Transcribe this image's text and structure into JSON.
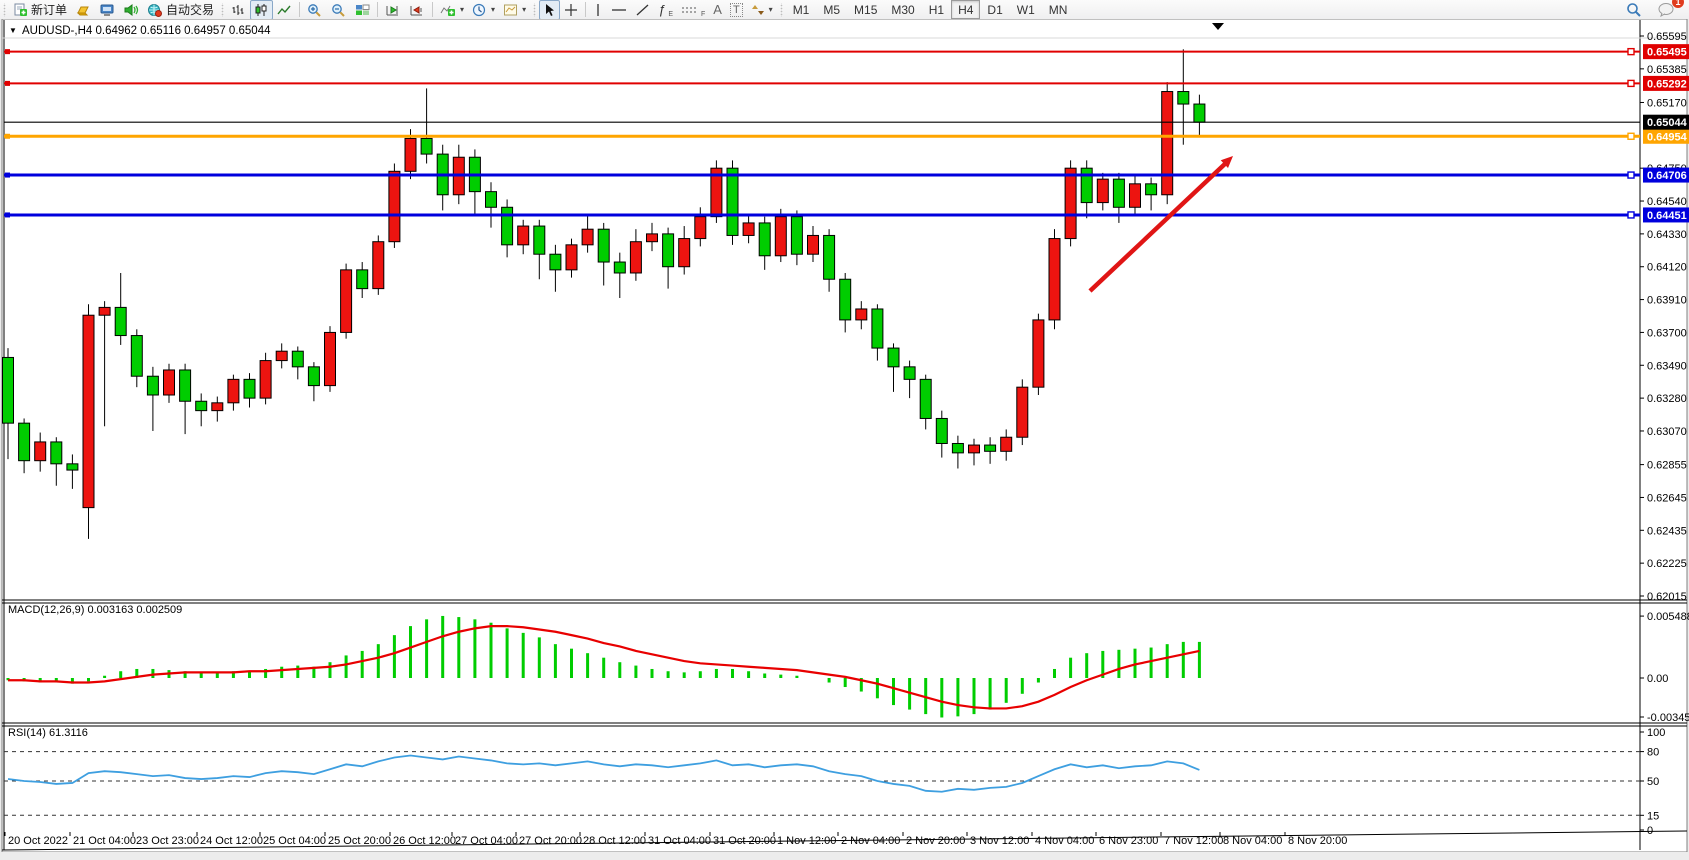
{
  "toolbar": {
    "new_order_label": "新订单",
    "auto_trading_label": "自动交易",
    "icons": [
      "new-order-icon",
      "gold-icon",
      "terminal-icon",
      "sound-icon",
      "auto-trading-icon",
      "bar-chart-icon",
      "candlestick-icon",
      "line-chart-icon",
      "zoom-in-icon",
      "zoom-out-icon",
      "tile-windows-icon",
      "auto-scroll-icon",
      "chart-shift-icon",
      "indicators-icon",
      "periods-icon",
      "templates-icon",
      "cursor-icon",
      "crosshair-icon",
      "vline-icon",
      "hline-icon",
      "trendline-icon",
      "fibonacci-icon",
      "channel-icon",
      "text-icon",
      "text-label-icon",
      "arrows-icon",
      "search-icon",
      "chat-icon"
    ],
    "glyphs": {
      "fibonacci": "ƒ",
      "text": "A",
      "text_label": "T",
      "caret": "▾",
      "shift_marker": "▼"
    },
    "timeframes": [
      "M1",
      "M5",
      "M15",
      "M30",
      "H1",
      "H4",
      "D1",
      "W1",
      "MN"
    ],
    "active_timeframe": "H4",
    "chat_badge": "1"
  },
  "window": {
    "title_symbol": "AUDUSD-,H4",
    "quote_open": "0.64962",
    "quote_high": "0.65116",
    "quote_low": "0.64957",
    "quote_close": "0.65044"
  },
  "price_axis": {
    "ticks": [
      "0.65595",
      "0.65385",
      "0.65170",
      "0.64750",
      "0.64540",
      "0.64330",
      "0.64120",
      "0.63910",
      "0.63700",
      "0.63490",
      "0.63280",
      "0.63070",
      "0.62855",
      "0.62645",
      "0.62435",
      "0.62225",
      "0.62015"
    ],
    "current_price": "0.65044",
    "current_price_value": 0.65044
  },
  "hlines": [
    {
      "name": "resistance-1",
      "price": 0.65495,
      "label": "0.65495",
      "color": "#e00000",
      "width": 2
    },
    {
      "name": "resistance-2",
      "price": 0.65292,
      "label": "0.65292",
      "color": "#e00000",
      "width": 2
    },
    {
      "name": "pivot-orange",
      "price": 0.64954,
      "label": "0.64954",
      "color": "#ffa500",
      "width": 3
    },
    {
      "name": "support-1",
      "price": 0.64706,
      "label": "0.64706",
      "color": "#0000dd",
      "width": 3
    },
    {
      "name": "support-2",
      "price": 0.64451,
      "label": "0.64451",
      "color": "#0000dd",
      "width": 3
    }
  ],
  "time_axis": {
    "labels": [
      "20 Oct 2022",
      "21 Oct 04:00",
      "23 Oct 23:00",
      "24 Oct 12:00",
      "25 Oct 04:00",
      "25 Oct 20:00",
      "26 Oct 12:00",
      "27 Oct 04:00",
      "27 Oct 20:00",
      "28 Oct 12:00",
      "31 Oct 04:00",
      "31 Oct 20:00",
      "1 Nov 12:00",
      "2 Nov 04:00",
      "2 Nov 20:00",
      "3 Nov 12:00",
      "4 Nov 04:00",
      "6 Nov 23:00",
      "7 Nov 12:00",
      "8 Nov 04:00",
      "8 Nov 20:00"
    ],
    "positions": [
      5,
      70,
      133,
      197,
      260,
      325,
      390,
      452,
      516,
      580,
      645,
      710,
      774,
      838,
      903,
      967,
      1032,
      1096,
      1161,
      1220,
      1285
    ]
  },
  "chart_data": {
    "type": "candlestick",
    "symbol": "AUDUSD",
    "timeframe": "H4",
    "up_color": "#ed1410",
    "down_color": "#00cd00",
    "price_top": 0.65595,
    "price_bottom": 0.62015,
    "candles": [
      [
        0.6354,
        0.636,
        0.6289,
        0.6312
      ],
      [
        0.6312,
        0.6315,
        0.628,
        0.6288
      ],
      [
        0.6288,
        0.6306,
        0.6281,
        0.63
      ],
      [
        0.63,
        0.6303,
        0.6272,
        0.6286
      ],
      [
        0.6286,
        0.6292,
        0.627,
        0.6282
      ],
      [
        0.6258,
        0.6388,
        0.6238,
        0.6381
      ],
      [
        0.6381,
        0.639,
        0.631,
        0.6386
      ],
      [
        0.6386,
        0.6408,
        0.6362,
        0.6368
      ],
      [
        0.6368,
        0.6372,
        0.6335,
        0.6342
      ],
      [
        0.6342,
        0.6348,
        0.6307,
        0.633
      ],
      [
        0.633,
        0.635,
        0.6325,
        0.6346
      ],
      [
        0.6346,
        0.635,
        0.6305,
        0.6326
      ],
      [
        0.6326,
        0.6331,
        0.631,
        0.632
      ],
      [
        0.632,
        0.6329,
        0.6313,
        0.6325
      ],
      [
        0.6325,
        0.6343,
        0.632,
        0.634
      ],
      [
        0.634,
        0.6344,
        0.6322,
        0.6328
      ],
      [
        0.6328,
        0.6357,
        0.6324,
        0.6352
      ],
      [
        0.6352,
        0.6363,
        0.6347,
        0.6358
      ],
      [
        0.6358,
        0.6361,
        0.634,
        0.6348
      ],
      [
        0.6348,
        0.6351,
        0.6326,
        0.6336
      ],
      [
        0.6336,
        0.6374,
        0.6332,
        0.637
      ],
      [
        0.637,
        0.6414,
        0.6366,
        0.641
      ],
      [
        0.641,
        0.6415,
        0.6392,
        0.6398
      ],
      [
        0.6398,
        0.6432,
        0.6394,
        0.6428
      ],
      [
        0.6428,
        0.6478,
        0.6424,
        0.6473
      ],
      [
        0.6473,
        0.65,
        0.6468,
        0.6494
      ],
      [
        0.6494,
        0.6526,
        0.6478,
        0.6484
      ],
      [
        0.6484,
        0.649,
        0.6448,
        0.6458
      ],
      [
        0.6458,
        0.649,
        0.6452,
        0.6482
      ],
      [
        0.6482,
        0.6487,
        0.6445,
        0.646
      ],
      [
        0.646,
        0.6466,
        0.6437,
        0.645
      ],
      [
        0.645,
        0.6455,
        0.6418,
        0.6426
      ],
      [
        0.6426,
        0.6442,
        0.642,
        0.6438
      ],
      [
        0.6438,
        0.6442,
        0.6404,
        0.642
      ],
      [
        0.642,
        0.6426,
        0.6396,
        0.641
      ],
      [
        0.641,
        0.643,
        0.6405,
        0.6426
      ],
      [
        0.6426,
        0.6445,
        0.6421,
        0.6436
      ],
      [
        0.6436,
        0.644,
        0.64,
        0.6415
      ],
      [
        0.6415,
        0.6421,
        0.6392,
        0.6408
      ],
      [
        0.6408,
        0.6436,
        0.6403,
        0.6428
      ],
      [
        0.6428,
        0.644,
        0.6422,
        0.6433
      ],
      [
        0.6433,
        0.6437,
        0.6398,
        0.6412
      ],
      [
        0.6412,
        0.6438,
        0.6407,
        0.643
      ],
      [
        0.643,
        0.645,
        0.6425,
        0.6444
      ],
      [
        0.6444,
        0.648,
        0.644,
        0.6475
      ],
      [
        0.6475,
        0.648,
        0.6426,
        0.6432
      ],
      [
        0.6432,
        0.6446,
        0.6427,
        0.644
      ],
      [
        0.644,
        0.6444,
        0.641,
        0.6419
      ],
      [
        0.6419,
        0.6449,
        0.6415,
        0.6444
      ],
      [
        0.6444,
        0.6448,
        0.6413,
        0.642
      ],
      [
        0.642,
        0.6438,
        0.6415,
        0.6432
      ],
      [
        0.6432,
        0.6436,
        0.6396,
        0.6404
      ],
      [
        0.6404,
        0.6408,
        0.637,
        0.6378
      ],
      [
        0.6378,
        0.639,
        0.6372,
        0.6385
      ],
      [
        0.6385,
        0.6388,
        0.6352,
        0.636
      ],
      [
        0.636,
        0.6363,
        0.6332,
        0.6348
      ],
      [
        0.6348,
        0.6352,
        0.6328,
        0.634
      ],
      [
        0.634,
        0.6343,
        0.6308,
        0.6315
      ],
      [
        0.6315,
        0.632,
        0.629,
        0.6299
      ],
      [
        0.6299,
        0.6304,
        0.6283,
        0.6293
      ],
      [
        0.6293,
        0.6302,
        0.6285,
        0.6298
      ],
      [
        0.6298,
        0.6303,
        0.6286,
        0.6294
      ],
      [
        0.6294,
        0.6308,
        0.6288,
        0.6303
      ],
      [
        0.6303,
        0.634,
        0.6298,
        0.6335
      ],
      [
        0.6335,
        0.6382,
        0.633,
        0.6378
      ],
      [
        0.6378,
        0.6436,
        0.6372,
        0.643
      ],
      [
        0.643,
        0.648,
        0.6425,
        0.6475
      ],
      [
        0.6475,
        0.648,
        0.6443,
        0.6453
      ],
      [
        0.6453,
        0.6472,
        0.6448,
        0.6468
      ],
      [
        0.6468,
        0.6472,
        0.644,
        0.645
      ],
      [
        0.645,
        0.647,
        0.6445,
        0.6465
      ],
      [
        0.6465,
        0.6469,
        0.6448,
        0.6458
      ],
      [
        0.6458,
        0.653,
        0.6452,
        0.6524
      ],
      [
        0.6524,
        0.6551,
        0.649,
        0.6516
      ],
      [
        0.6516,
        0.6522,
        0.6496,
        0.65044
      ]
    ]
  },
  "macd": {
    "label": "MACD(12,26,9)",
    "value_main": "0.003163",
    "value_signal": "0.002509",
    "axis_max": "0.005488",
    "axis_zero": "0.00",
    "axis_min": "-0.003457",
    "histogram_color": "#00cd00",
    "signal_color": "#e80000",
    "histogram": [
      -0.0002,
      -0.0003,
      -0.0004,
      -0.0004,
      -0.0005,
      -0.0003,
      0.0002,
      0.0006,
      0.0008,
      0.0008,
      0.0007,
      0.0006,
      0.0005,
      0.0005,
      0.0006,
      0.0006,
      0.0008,
      0.001,
      0.0011,
      0.001,
      0.0014,
      0.002,
      0.0024,
      0.003,
      0.0038,
      0.0046,
      0.0052,
      0.0055,
      0.0054,
      0.0052,
      0.0049,
      0.0044,
      0.004,
      0.0036,
      0.003,
      0.0026,
      0.0022,
      0.0018,
      0.0014,
      0.0011,
      0.0008,
      0.0006,
      0.0005,
      0.0006,
      0.0008,
      0.0008,
      0.0006,
      0.0004,
      0.0003,
      0.0002,
      0.0,
      -0.0004,
      -0.0008,
      -0.0012,
      -0.0018,
      -0.0024,
      -0.0028,
      -0.0032,
      -0.0035,
      -0.0034,
      -0.0032,
      -0.0028,
      -0.0022,
      -0.0014,
      -0.0004,
      0.0008,
      0.0018,
      0.0022,
      0.0024,
      0.0025,
      0.0026,
      0.0027,
      0.003,
      0.0032,
      0.0032
    ],
    "signal": [
      -0.0002,
      -0.0002,
      -0.0003,
      -0.0003,
      -0.0004,
      -0.0004,
      -0.0003,
      -0.0001,
      0.0001,
      0.0003,
      0.0004,
      0.0005,
      0.0005,
      0.0005,
      0.0005,
      0.0006,
      0.0006,
      0.0007,
      0.0008,
      0.0009,
      0.001,
      0.0012,
      0.0015,
      0.0018,
      0.0022,
      0.0027,
      0.0032,
      0.0037,
      0.0041,
      0.0044,
      0.0046,
      0.0046,
      0.0045,
      0.0043,
      0.0041,
      0.0038,
      0.0035,
      0.0031,
      0.0028,
      0.0024,
      0.0021,
      0.0018,
      0.0015,
      0.0013,
      0.0012,
      0.0011,
      0.001,
      0.0009,
      0.0008,
      0.0007,
      0.0005,
      0.0003,
      0.0001,
      -0.0002,
      -0.0005,
      -0.0009,
      -0.0013,
      -0.0017,
      -0.0021,
      -0.0024,
      -0.0026,
      -0.0027,
      -0.0027,
      -0.0025,
      -0.0021,
      -0.0015,
      -0.0008,
      -0.0002,
      0.0003,
      0.0008,
      0.0012,
      0.0015,
      0.0018,
      0.0021,
      0.0024
    ]
  },
  "rsi": {
    "label": "RSI(14)",
    "value": "61.3116",
    "line_color": "#3e9fe0",
    "levels": [
      "100",
      "80",
      "50",
      "15",
      "0"
    ],
    "series": [
      52,
      50,
      49,
      47,
      48,
      58,
      60,
      59,
      57,
      55,
      56,
      53,
      52,
      53,
      55,
      54,
      58,
      60,
      59,
      57,
      62,
      67,
      65,
      70,
      74,
      76,
      74,
      72,
      75,
      73,
      71,
      68,
      67,
      68,
      66,
      68,
      70,
      67,
      65,
      67,
      66,
      64,
      66,
      68,
      71,
      66,
      67,
      64,
      66,
      67,
      65,
      60,
      57,
      55,
      50,
      47,
      45,
      40,
      39,
      42,
      41,
      43,
      44,
      48,
      55,
      62,
      67,
      64,
      66,
      63,
      65,
      66,
      70,
      68,
      61.3
    ]
  },
  "annotation": {
    "arrow_color": "#e01515",
    "arrow_from": [
      1090,
      291
    ],
    "arrow_to": [
      1233,
      156
    ]
  }
}
